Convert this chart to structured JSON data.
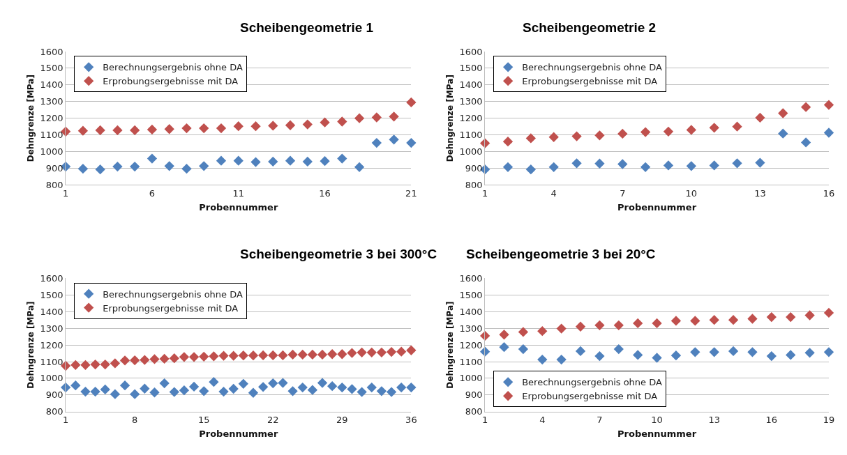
{
  "chart_data": [
    {
      "type": "scatter",
      "title": "Scheibengeometrie 1",
      "xlabel": "Probennummer",
      "ylabel": "Dehngrenze [MPa]",
      "marker": "diamond",
      "grid": "y",
      "legend": "top left",
      "x": [
        1,
        2,
        3,
        4,
        5,
        6,
        7,
        8,
        9,
        10,
        11,
        12,
        13,
        14,
        15,
        16,
        17,
        18,
        19,
        20,
        21
      ],
      "xlim": [
        1,
        21
      ],
      "xticks": [
        1,
        6,
        11,
        16,
        21
      ],
      "ylim": [
        800,
        1600
      ],
      "yticks": [
        800,
        900,
        1000,
        1100,
        1200,
        1300,
        1400,
        1500,
        1600
      ],
      "series": [
        {
          "name": "Berechnungsergebnis ohne DA",
          "color": "#4f81bd",
          "values": [
            910,
            897,
            893,
            910,
            910,
            958,
            913,
            897,
            913,
            945,
            945,
            937,
            940,
            945,
            940,
            943,
            958,
            907,
            1052,
            1072,
            1052
          ]
        },
        {
          "name": "Erprobungsergebnisse mit DA",
          "color": "#c0504d",
          "values": [
            1120,
            1125,
            1128,
            1128,
            1128,
            1132,
            1135,
            1140,
            1140,
            1140,
            1152,
            1152,
            1155,
            1158,
            1163,
            1175,
            1180,
            1200,
            1205,
            1210,
            1295
          ]
        }
      ]
    },
    {
      "type": "scatter",
      "title": "Scheibengeometrie 2",
      "xlabel": "Probennummer",
      "ylabel": "Dehngrenze [MPa]",
      "marker": "diamond",
      "grid": "y",
      "legend": "top left",
      "x": [
        1,
        2,
        3,
        4,
        5,
        6,
        7,
        8,
        9,
        10,
        11,
        12,
        13,
        14,
        15,
        16
      ],
      "xlim": [
        1,
        16
      ],
      "xticks": [
        1,
        4,
        7,
        10,
        13,
        16
      ],
      "ylim": [
        800,
        1600
      ],
      "yticks": [
        800,
        900,
        1000,
        1100,
        1200,
        1300,
        1400,
        1500,
        1600
      ],
      "series": [
        {
          "name": "Berechnungsergebnis ohne DA",
          "color": "#4f81bd",
          "values": [
            893,
            907,
            893,
            907,
            930,
            928,
            925,
            907,
            917,
            913,
            917,
            930,
            933,
            1108,
            1055,
            1113
          ]
        },
        {
          "name": "Erprobungsergebnisse mit DA",
          "color": "#c0504d",
          "values": [
            1050,
            1060,
            1080,
            1087,
            1092,
            1097,
            1107,
            1117,
            1120,
            1130,
            1143,
            1150,
            1203,
            1230,
            1267,
            1280
          ]
        }
      ]
    },
    {
      "type": "scatter",
      "title": "Scheibengeometrie 3 bei 300°C",
      "xlabel": "Probennummer",
      "ylabel": "Dehngrenze [MPa]",
      "marker": "diamond",
      "grid": "y",
      "legend": "top left",
      "x": [
        1,
        2,
        3,
        4,
        5,
        6,
        7,
        8,
        9,
        10,
        11,
        12,
        13,
        14,
        15,
        16,
        17,
        18,
        19,
        20,
        21,
        22,
        23,
        24,
        25,
        26,
        27,
        28,
        29,
        30,
        31,
        32,
        33,
        34,
        35,
        36
      ],
      "xlim": [
        1,
        36
      ],
      "xticks": [
        1,
        8,
        15,
        22,
        29,
        36
      ],
      "ylim": [
        800,
        1600
      ],
      "yticks": [
        800,
        900,
        1000,
        1100,
        1200,
        1300,
        1400,
        1500,
        1600
      ],
      "series": [
        {
          "name": "Berechnungsergebnis ohne DA",
          "color": "#4f81bd",
          "values": [
            945,
            957,
            920,
            920,
            933,
            905,
            957,
            905,
            938,
            915,
            970,
            918,
            928,
            950,
            923,
            978,
            920,
            937,
            967,
            913,
            948,
            970,
            972,
            923,
            945,
            930,
            972,
            953,
            945,
            935,
            918,
            945,
            923,
            918,
            945,
            945
          ]
        },
        {
          "name": "Erprobungsergebnisse mit DA",
          "color": "#c0504d",
          "values": [
            1075,
            1080,
            1080,
            1083,
            1083,
            1090,
            1107,
            1108,
            1110,
            1115,
            1117,
            1120,
            1128,
            1128,
            1130,
            1132,
            1135,
            1135,
            1137,
            1137,
            1138,
            1138,
            1138,
            1142,
            1142,
            1142,
            1142,
            1145,
            1145,
            1152,
            1155,
            1155,
            1155,
            1158,
            1160,
            1168
          ]
        }
      ]
    },
    {
      "type": "scatter",
      "title": "Scheibengeometrie 3 bei 20°C",
      "xlabel": "Probennummer",
      "ylabel": "Dehngrenze [MPa]",
      "marker": "diamond",
      "grid": "y",
      "legend": "bottom left",
      "x": [
        1,
        2,
        3,
        4,
        5,
        6,
        7,
        8,
        9,
        10,
        11,
        12,
        13,
        14,
        15,
        16,
        17,
        18,
        19
      ],
      "xlim": [
        1,
        19
      ],
      "xticks": [
        1,
        4,
        7,
        10,
        13,
        16,
        19
      ],
      "ylim": [
        800,
        1600
      ],
      "yticks": [
        800,
        900,
        1000,
        1100,
        1200,
        1300,
        1400,
        1500,
        1600
      ],
      "series": [
        {
          "name": "Berechnungsergebnis ohne DA",
          "color": "#4f81bd",
          "values": [
            1160,
            1187,
            1175,
            1112,
            1112,
            1163,
            1133,
            1175,
            1140,
            1123,
            1137,
            1157,
            1157,
            1163,
            1157,
            1133,
            1140,
            1153,
            1157
          ]
        },
        {
          "name": "Erprobungsergebnisse mit DA",
          "color": "#c0504d",
          "values": [
            1255,
            1262,
            1278,
            1283,
            1298,
            1310,
            1318,
            1318,
            1330,
            1330,
            1345,
            1345,
            1350,
            1350,
            1357,
            1367,
            1367,
            1378,
            1393
          ]
        }
      ]
    }
  ]
}
